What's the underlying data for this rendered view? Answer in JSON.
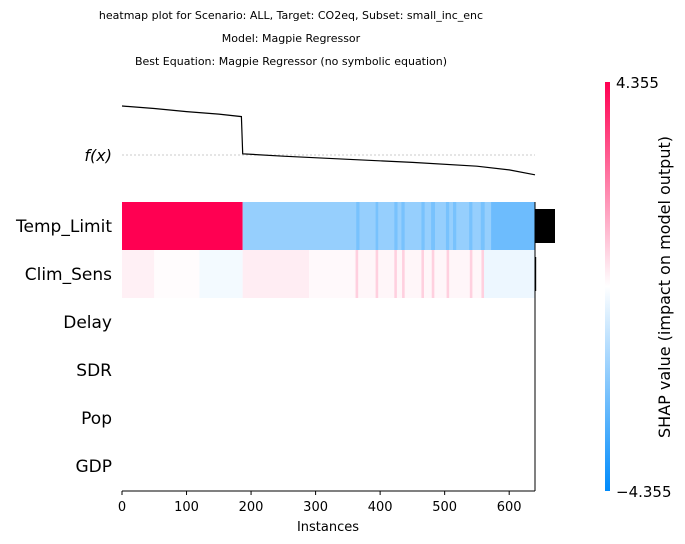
{
  "chart_data": {
    "type": "heatmap",
    "title_lines": [
      "heatmap plot for Scenario: ALL, Target: CO2eq, Subset: small_inc_enc",
      "Model: Magpie Regressor",
      "Best Equation: Magpie Regressor (no symbolic equation)"
    ],
    "xlabel": "Instances",
    "x_ticks": [
      0,
      100,
      200,
      300,
      400,
      500,
      600
    ],
    "xlim": [
      0,
      640
    ],
    "fx_label": "f(x)",
    "features": [
      "Temp_Limit",
      "Clim_Sens",
      "Delay",
      "SDR",
      "Pop",
      "GDP"
    ],
    "feature_importance": [
      1.0,
      0.06,
      0.0,
      0.0,
      0.0,
      0.0
    ],
    "fx_curve": [
      [
        0,
        0.79
      ],
      [
        50,
        0.75
      ],
      [
        100,
        0.7
      ],
      [
        150,
        0.66
      ],
      [
        185,
        0.62
      ],
      [
        187,
        0.02
      ],
      [
        250,
        -0.02
      ],
      [
        350,
        -0.07
      ],
      [
        450,
        -0.12
      ],
      [
        550,
        -0.18
      ],
      [
        600,
        -0.24
      ],
      [
        640,
        -0.32
      ]
    ],
    "fx_baseline_y": 0.0,
    "colorbar": {
      "label": "SHAP value (impact on model output)",
      "max_label": "4.355",
      "min_label": "−4.355",
      "vmin": -4.355,
      "vmax": 4.355,
      "color_high": "#ff0052",
      "color_mid": "#ffffff",
      "color_low": "#008bfb"
    },
    "shap_rows": {
      "Temp_Limit": {
        "segments": [
          {
            "from": 0,
            "to": 187,
            "value": 4.355
          },
          {
            "from": 187,
            "to": 640,
            "value": -1.8
          }
        ],
        "stripes": [
          {
            "from": 363,
            "to": 368,
            "value": -2.3
          },
          {
            "from": 393,
            "to": 397,
            "value": -2.3
          },
          {
            "from": 422,
            "to": 427,
            "value": -2.3
          },
          {
            "from": 433,
            "to": 438,
            "value": -2.3
          },
          {
            "from": 464,
            "to": 469,
            "value": -2.3
          },
          {
            "from": 479,
            "to": 485,
            "value": -2.3
          },
          {
            "from": 502,
            "to": 507,
            "value": -2.3
          },
          {
            "from": 513,
            "to": 518,
            "value": -2.3
          },
          {
            "from": 538,
            "to": 543,
            "value": -2.3
          },
          {
            "from": 556,
            "to": 562,
            "value": -2.3
          },
          {
            "from": 572,
            "to": 640,
            "value": -2.5
          }
        ]
      },
      "Clim_Sens": {
        "segments": [
          {
            "from": 0,
            "to": 50,
            "value": 0.25
          },
          {
            "from": 50,
            "to": 120,
            "value": 0.05
          },
          {
            "from": 120,
            "to": 187,
            "value": -0.2
          },
          {
            "from": 187,
            "to": 290,
            "value": 0.3
          },
          {
            "from": 290,
            "to": 360,
            "value": 0.1
          },
          {
            "from": 360,
            "to": 560,
            "value": 0.15
          },
          {
            "from": 560,
            "to": 640,
            "value": -0.3
          }
        ],
        "stripes": [
          {
            "from": 362,
            "to": 366,
            "value": 0.8
          },
          {
            "from": 393,
            "to": 397,
            "value": 0.8
          },
          {
            "from": 422,
            "to": 426,
            "value": 0.8
          },
          {
            "from": 434,
            "to": 438,
            "value": 0.8
          },
          {
            "from": 464,
            "to": 468,
            "value": 0.8
          },
          {
            "from": 480,
            "to": 484,
            "value": 0.8
          },
          {
            "from": 503,
            "to": 507,
            "value": 0.8
          },
          {
            "from": 539,
            "to": 543,
            "value": 0.8
          },
          {
            "from": 557,
            "to": 561,
            "value": 0.8
          }
        ]
      },
      "Delay": {
        "segments": [
          {
            "from": 0,
            "to": 640,
            "value": 0
          }
        ],
        "stripes": []
      },
      "SDR": {
        "segments": [
          {
            "from": 0,
            "to": 640,
            "value": 0
          }
        ],
        "stripes": []
      },
      "Pop": {
        "segments": [
          {
            "from": 0,
            "to": 640,
            "value": 0
          }
        ],
        "stripes": []
      },
      "GDP": {
        "segments": [
          {
            "from": 0,
            "to": 640,
            "value": 0
          }
        ],
        "stripes": []
      }
    }
  }
}
